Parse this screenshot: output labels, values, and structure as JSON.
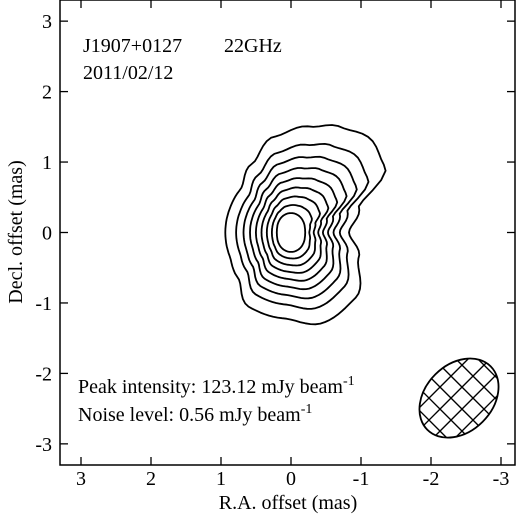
{
  "chart_data": {
    "type": "contour",
    "source": "J1907+0127",
    "frequency": "22GHz",
    "date": "2011/02/12",
    "xlabel": "R.A. offset (mas)",
    "ylabel": "Decl. offset (mas)",
    "xlim": [
      3.3,
      -3.2
    ],
    "ylim": [
      -3.3,
      3.3
    ],
    "xticks": [
      3,
      2,
      1,
      0,
      -1,
      -2,
      -3
    ],
    "yticks": [
      3,
      2,
      1,
      0,
      -1,
      -2,
      -3
    ],
    "peak_label": "Peak intensity: 123.12 mJy beam",
    "peak_unit_exp": "-1",
    "noise_label": "Noise level: 0.56 mJy beam",
    "noise_unit_exp": "-1",
    "contour_levels": 9,
    "peak_position": [
      0.0,
      0.0
    ],
    "beam": {
      "center": [
        -2.4,
        -2.35
      ],
      "major_mas": 1.28,
      "minor_mas": 0.95,
      "pa_deg": 45
    }
  }
}
